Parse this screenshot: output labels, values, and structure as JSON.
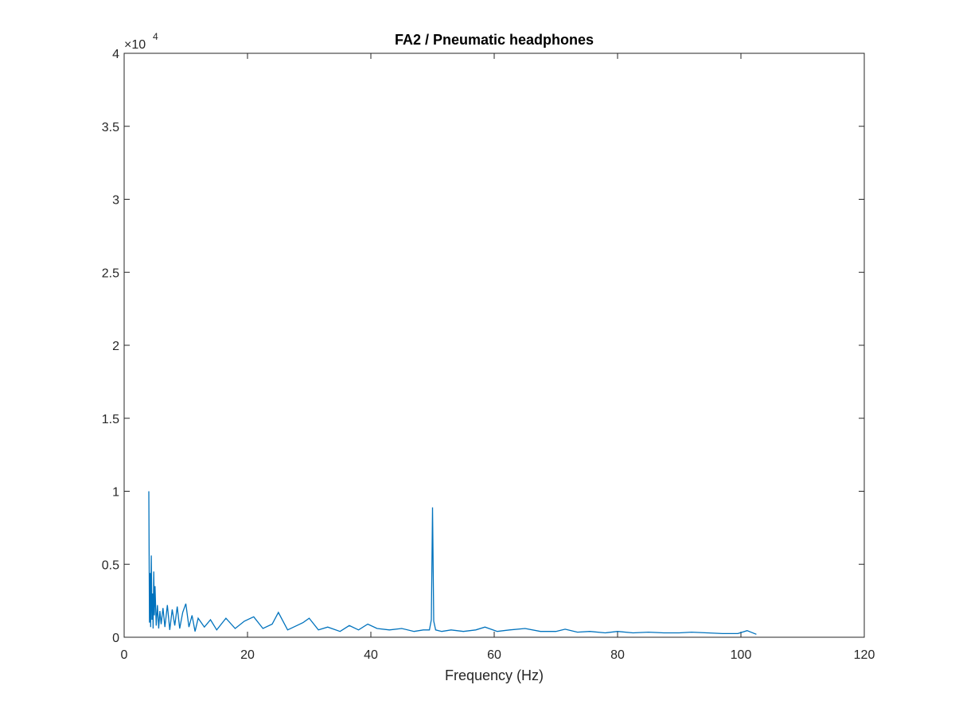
{
  "chart_data": {
    "type": "line",
    "title": "FA2 / Pneumatic headphones",
    "xlabel": "Frequency (Hz)",
    "ylabel": "",
    "xlim": [
      0,
      120
    ],
    "ylim": [
      0,
      40000
    ],
    "x_ticks": [
      "0",
      "20",
      "40",
      "60",
      "80",
      "100",
      "120"
    ],
    "y_ticks": [
      "0",
      "0.5",
      "1",
      "1.5",
      "2",
      "2.5",
      "3",
      "3.5",
      "4"
    ],
    "y_multiplier_label": "×10",
    "y_multiplier_exponent": "4",
    "grid": false,
    "series": [
      {
        "color": "#0072bd",
        "x": [
          4.0,
          4.1,
          4.2,
          4.3,
          4.4,
          4.5,
          4.6,
          4.7,
          4.8,
          4.9,
          5.0,
          5.2,
          5.4,
          5.6,
          5.8,
          6.0,
          6.3,
          6.6,
          7.0,
          7.4,
          7.8,
          8.2,
          8.6,
          9.0,
          9.5,
          10.0,
          10.5,
          11.0,
          11.5,
          12.0,
          13.0,
          14.0,
          15.0,
          16.5,
          18.0,
          19.5,
          21.0,
          22.5,
          24.0,
          25.0,
          26.5,
          28.0,
          29.0,
          30.0,
          31.5,
          33.0,
          35.0,
          36.5,
          38.0,
          39.5,
          41.0,
          43.0,
          45.0,
          47.0,
          48.5,
          49.5,
          49.8,
          50.0,
          50.2,
          50.5,
          51.5,
          53.0,
          55.0,
          57.0,
          58.5,
          60.5,
          62.5,
          65.0,
          67.5,
          70.0,
          71.5,
          73.5,
          75.5,
          78.0,
          80.0,
          82.5,
          85.0,
          87.5,
          90.0,
          92.0,
          94.5,
          97.0,
          99.5,
          101.0,
          102.5
        ],
        "y": [
          10000,
          1000,
          4400,
          700,
          5600,
          1200,
          3000,
          600,
          4500,
          1500,
          3500,
          800,
          2200,
          600,
          1800,
          900,
          2000,
          700,
          2200,
          500,
          1900,
          800,
          2100,
          600,
          1700,
          2300,
          700,
          1500,
          400,
          1300,
          700,
          1200,
          500,
          1300,
          600,
          1100,
          1400,
          600,
          900,
          1700,
          500,
          800,
          1000,
          1300,
          500,
          700,
          400,
          800,
          500,
          900,
          600,
          500,
          600,
          400,
          500,
          500,
          1200,
          8900,
          1100,
          500,
          400,
          500,
          400,
          500,
          700,
          400,
          500,
          600,
          400,
          400,
          550,
          350,
          400,
          300,
          400,
          300,
          350,
          300,
          300,
          350,
          300,
          250,
          250,
          450,
          200
        ]
      }
    ]
  }
}
